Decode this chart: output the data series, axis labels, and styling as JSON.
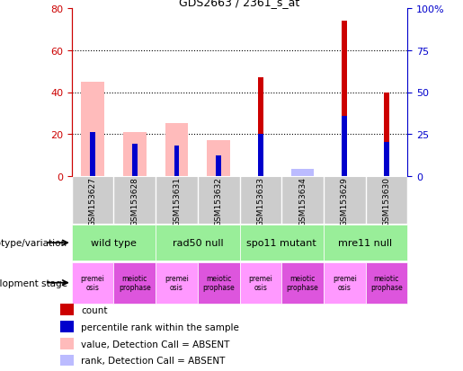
{
  "title": "GDS2663 / 2361_s_at",
  "samples": [
    "GSM153627",
    "GSM153628",
    "GSM153631",
    "GSM153632",
    "GSM153633",
    "GSM153634",
    "GSM153629",
    "GSM153630"
  ],
  "count_values": [
    0,
    0,
    0,
    9,
    47,
    0,
    74,
    40
  ],
  "percentile_values": [
    26,
    19,
    18,
    12,
    25,
    0,
    36,
    20
  ],
  "absent_value_values": [
    45,
    21,
    25,
    17,
    0,
    0,
    0,
    0
  ],
  "absent_rank_values": [
    0,
    0,
    0,
    0,
    0,
    4,
    0,
    0
  ],
  "ylim_left": [
    0,
    80
  ],
  "ylim_right": [
    0,
    100
  ],
  "yticks_left": [
    0,
    20,
    40,
    60,
    80
  ],
  "yticks_right": [
    0,
    25,
    50,
    75,
    100
  ],
  "ytick_labels_right": [
    "0",
    "25",
    "50",
    "75",
    "100%"
  ],
  "genotype_groups": [
    {
      "label": "wild type",
      "span": [
        0,
        2
      ]
    },
    {
      "label": "rad50 null",
      "span": [
        2,
        4
      ]
    },
    {
      "label": "spo11 mutant",
      "span": [
        4,
        6
      ]
    },
    {
      "label": "mre11 null",
      "span": [
        6,
        8
      ]
    }
  ],
  "dev_stages": [
    {
      "label": "premei\nosis",
      "color": "#ff99ff"
    },
    {
      "label": "meiotic\nprophase",
      "color": "#dd55dd"
    },
    {
      "label": "premei\nosis",
      "color": "#ff99ff"
    },
    {
      "label": "meiotic\nprophase",
      "color": "#dd55dd"
    },
    {
      "label": "premei\nosis",
      "color": "#ff99ff"
    },
    {
      "label": "meiotic\nprophase",
      "color": "#dd55dd"
    },
    {
      "label": "premei\nosis",
      "color": "#ff99ff"
    },
    {
      "label": "meiotic\nprophase",
      "color": "#dd55dd"
    }
  ],
  "color_count": "#cc0000",
  "color_percentile": "#0000cc",
  "color_absent_value": "#ffbbbb",
  "color_absent_rank": "#bbbbff",
  "color_genotype_bg": "#99ee99",
  "color_sample_bg": "#cccccc",
  "wide_bar_width": 0.55,
  "narrow_bar_width": 0.12,
  "legend_items": [
    {
      "color": "#cc0000",
      "label": "count"
    },
    {
      "color": "#0000cc",
      "label": "percentile rank within the sample"
    },
    {
      "color": "#ffbbbb",
      "label": "value, Detection Call = ABSENT"
    },
    {
      "color": "#bbbbff",
      "label": "rank, Detection Call = ABSENT"
    }
  ]
}
